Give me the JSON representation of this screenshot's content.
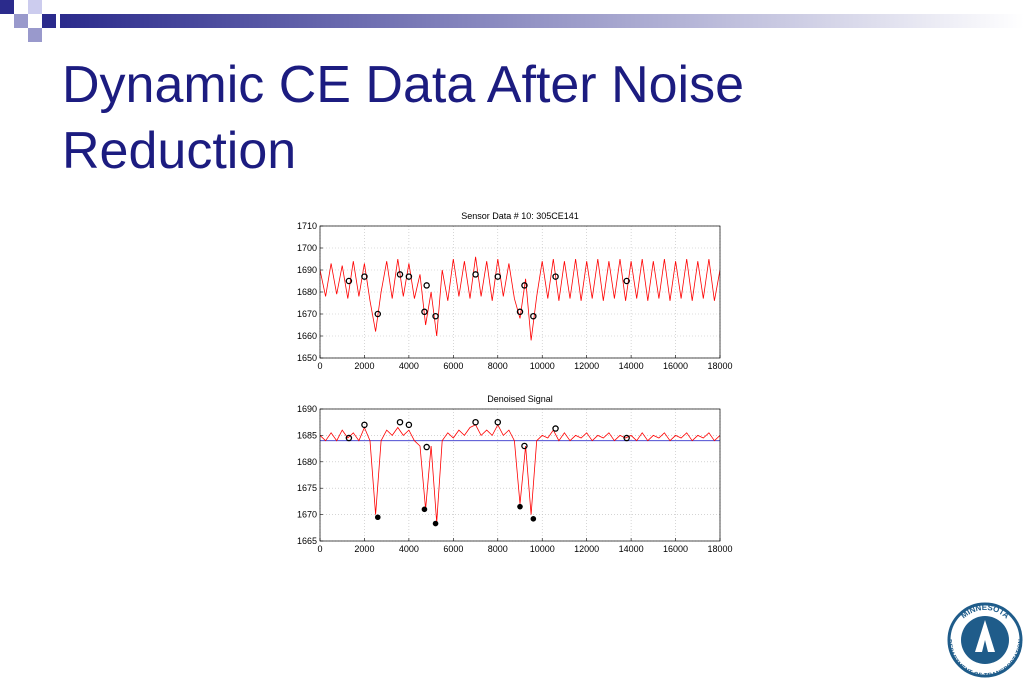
{
  "title": "Dynamic CE Data After Noise Reduction",
  "logo": {
    "top": "MINNESOTA",
    "bottom": "DEPARTMENT OF TRANSPORTATION"
  },
  "chart_data": [
    {
      "type": "line",
      "title": "Sensor Data # 10: 305CE141",
      "xlim": [
        0,
        18000
      ],
      "xticks": [
        0,
        2000,
        4000,
        6000,
        8000,
        10000,
        12000,
        14000,
        16000,
        18000
      ],
      "ylim": [
        1650,
        1710
      ],
      "yticks": [
        1650,
        1660,
        1670,
        1680,
        1690,
        1700,
        1710
      ],
      "grid": true,
      "series": [
        {
          "style": "line",
          "color": "#ff0000",
          "x": [
            0,
            250,
            500,
            750,
            1000,
            1250,
            1500,
            1750,
            2000,
            2250,
            2500,
            2750,
            3000,
            3250,
            3500,
            3750,
            4000,
            4250,
            4500,
            4750,
            5000,
            5250,
            5500,
            5750,
            6000,
            6250,
            6500,
            6750,
            7000,
            7250,
            7500,
            7750,
            8000,
            8250,
            8500,
            8750,
            9000,
            9250,
            9500,
            9750,
            10000,
            10250,
            10500,
            10750,
            11000,
            11250,
            11500,
            11750,
            12000,
            12250,
            12500,
            12750,
            13000,
            13250,
            13500,
            13750,
            14000,
            14250,
            14500,
            14750,
            15000,
            15250,
            15500,
            15750,
            16000,
            16250,
            16500,
            16750,
            17000,
            17250,
            17500,
            17750,
            18000
          ],
          "values": [
            1690,
            1678,
            1693,
            1679,
            1692,
            1677,
            1694,
            1678,
            1693,
            1676,
            1662,
            1680,
            1694,
            1677,
            1695,
            1678,
            1693,
            1677,
            1688,
            1665,
            1680,
            1660,
            1690,
            1676,
            1695,
            1678,
            1694,
            1677,
            1696,
            1678,
            1694,
            1676,
            1695,
            1678,
            1693,
            1677,
            1668,
            1686,
            1658,
            1678,
            1694,
            1677,
            1695,
            1676,
            1694,
            1677,
            1695,
            1676,
            1694,
            1677,
            1695,
            1676,
            1694,
            1677,
            1695,
            1676,
            1694,
            1677,
            1695,
            1676,
            1694,
            1677,
            1695,
            1676,
            1694,
            1677,
            1695,
            1676,
            1694,
            1677,
            1695,
            1676,
            1690
          ]
        },
        {
          "style": "open-marker",
          "color": "#000000",
          "x": [
            1300,
            2000,
            2600,
            3600,
            4000,
            4700,
            4800,
            5200,
            7000,
            8000,
            9000,
            9200,
            9600,
            10600,
            13800
          ],
          "values": [
            1685,
            1687,
            1670,
            1688,
            1687,
            1671,
            1683,
            1669,
            1688,
            1687,
            1671,
            1683,
            1669,
            1687,
            1685
          ]
        }
      ]
    },
    {
      "type": "line",
      "title": "Denoised Signal",
      "xlim": [
        0,
        18000
      ],
      "xticks": [
        0,
        2000,
        4000,
        6000,
        8000,
        10000,
        12000,
        14000,
        16000,
        18000
      ],
      "ylim": [
        1665,
        1690
      ],
      "yticks": [
        1665,
        1670,
        1675,
        1680,
        1685,
        1690
      ],
      "grid": true,
      "series": [
        {
          "style": "line",
          "color": "#3333cc",
          "x": [
            0,
            18000
          ],
          "values": [
            1684,
            1684
          ]
        },
        {
          "style": "line",
          "color": "#ff0000",
          "x": [
            0,
            250,
            500,
            750,
            1000,
            1250,
            1500,
            1750,
            2000,
            2250,
            2500,
            2750,
            3000,
            3250,
            3500,
            3750,
            4000,
            4250,
            4500,
            4750,
            5000,
            5250,
            5500,
            5750,
            6000,
            6250,
            6500,
            6750,
            7000,
            7250,
            7500,
            7750,
            8000,
            8250,
            8500,
            8750,
            9000,
            9250,
            9500,
            9750,
            10000,
            10250,
            10500,
            10750,
            11000,
            11250,
            11500,
            11750,
            12000,
            12250,
            12500,
            12750,
            13000,
            13250,
            13500,
            13750,
            14000,
            14250,
            14500,
            14750,
            15000,
            15250,
            15500,
            15750,
            16000,
            16250,
            16500,
            16750,
            17000,
            17250,
            17500,
            17750,
            18000
          ],
          "values": [
            1685,
            1684,
            1685.5,
            1684,
            1686,
            1684.5,
            1685.5,
            1684,
            1686.5,
            1684,
            1670,
            1684,
            1686,
            1685,
            1686.5,
            1685,
            1686,
            1684,
            1683,
            1671,
            1683,
            1668.5,
            1684,
            1685.5,
            1684.5,
            1686,
            1685,
            1686.5,
            1687,
            1685,
            1686,
            1685,
            1687,
            1685,
            1686,
            1684,
            1672,
            1683,
            1670,
            1684,
            1685,
            1684.5,
            1686,
            1684,
            1685.5,
            1684,
            1685,
            1684.5,
            1685.5,
            1684,
            1685,
            1684.5,
            1685.5,
            1684,
            1685,
            1684.5,
            1685,
            1684,
            1685.5,
            1684,
            1685,
            1684.5,
            1685.5,
            1684,
            1685,
            1684.5,
            1685.5,
            1684,
            1685,
            1684.5,
            1685.5,
            1684,
            1685
          ]
        },
        {
          "style": "open-marker",
          "color": "#000000",
          "x": [
            1300,
            2000,
            3600,
            4000,
            4800,
            7000,
            8000,
            9200,
            10600,
            13800
          ],
          "values": [
            1684.5,
            1687,
            1687.5,
            1687,
            1682.8,
            1687.5,
            1687.5,
            1683,
            1686.3,
            1684.5
          ]
        },
        {
          "style": "filled-marker",
          "color": "#000000",
          "x": [
            2600,
            4700,
            5200,
            9000,
            9600
          ],
          "values": [
            1669.5,
            1671,
            1668.3,
            1671.5,
            1669.2
          ]
        }
      ]
    }
  ]
}
